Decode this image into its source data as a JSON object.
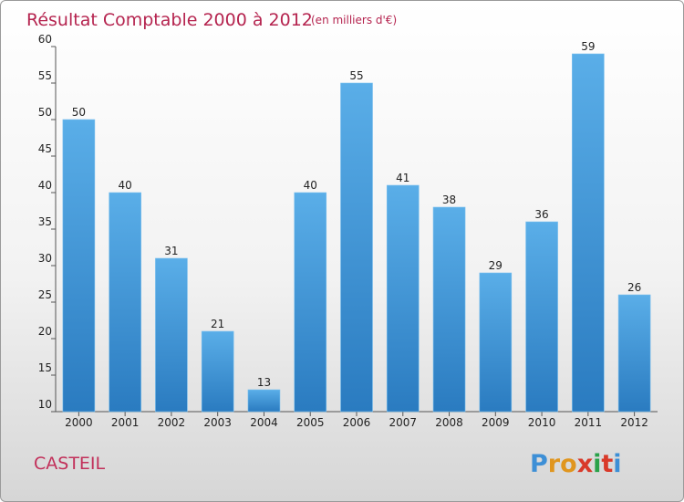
{
  "chart_data": {
    "type": "bar",
    "title": "Résultat Comptable 2000 à 2012",
    "subtitle": "(en milliers d'€)",
    "categories": [
      "2000",
      "2001",
      "2002",
      "2003",
      "2004",
      "2005",
      "2006",
      "2007",
      "2008",
      "2009",
      "2010",
      "2011",
      "2012"
    ],
    "values": [
      50,
      40,
      31,
      21,
      13,
      40,
      55,
      41,
      38,
      29,
      36,
      59,
      26
    ],
    "ylim": [
      10,
      60
    ],
    "yticks": [
      10,
      15,
      20,
      25,
      30,
      35,
      40,
      45,
      50,
      55,
      60
    ],
    "grid": false,
    "bar_color_top": "#5aaee8",
    "bar_color_bottom": "#2a7bc0",
    "commune": "CASTEIL",
    "logo": {
      "letters": [
        "P",
        "r",
        "o",
        "x",
        "i",
        "t",
        "i"
      ],
      "colors": [
        "#3d8fd6",
        "#e0961f",
        "#e0961f",
        "#d93a2a",
        "#2aa24a",
        "#d93a2a",
        "#3d8fd6"
      ]
    }
  }
}
